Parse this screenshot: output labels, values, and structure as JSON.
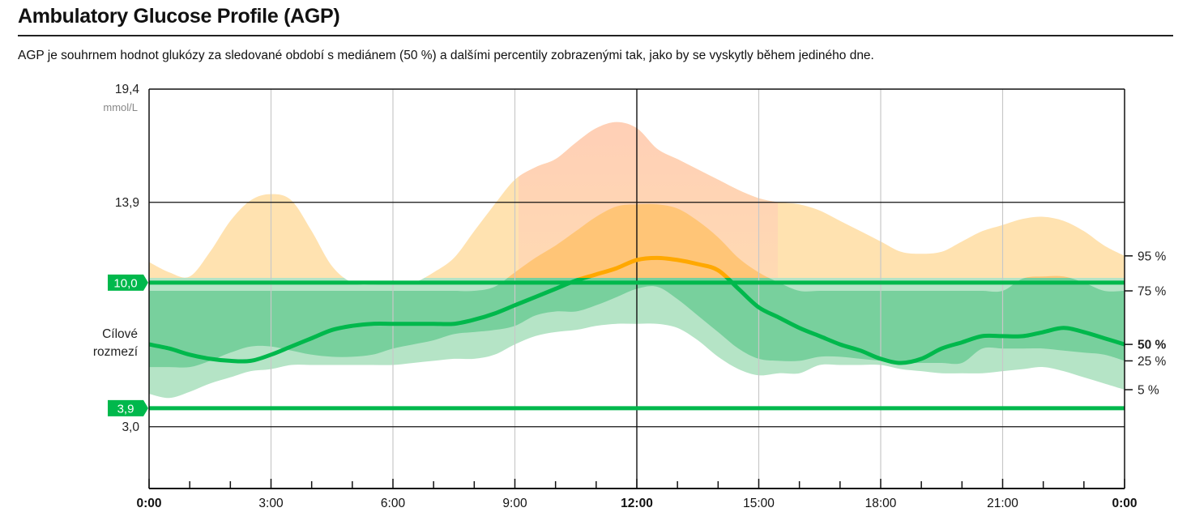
{
  "header": {
    "title": "Ambulatory Glucose Profile (AGP)",
    "description": "AGP je souhrnem hodnot glukózy za sledované období s mediánem (50 %) a dalšími percentily zobrazenými tak, jako by se vyskytly během jediného dne."
  },
  "chart_data": {
    "type": "area",
    "title": "Ambulatory Glucose Profile (AGP)",
    "unit": "mmol/L",
    "x_ticks": [
      "0:00",
      "3:00",
      "6:00",
      "9:00",
      "12:00",
      "15:00",
      "18:00",
      "21:00",
      "0:00"
    ],
    "x_hours": [
      0,
      0.5,
      1,
      1.5,
      2,
      2.5,
      3,
      3.5,
      4,
      4.5,
      5,
      5.5,
      6,
      6.5,
      7,
      7.5,
      8,
      8.5,
      9,
      9.5,
      10,
      10.5,
      11,
      11.5,
      12,
      12.5,
      13,
      13.5,
      14,
      14.5,
      15,
      15.5,
      16,
      16.5,
      17,
      17.5,
      18,
      18.5,
      19,
      19.5,
      20,
      20.5,
      21,
      21.5,
      22,
      22.5,
      23,
      23.5,
      24
    ],
    "y_ticks": [
      "19,4",
      "13,9",
      "3,0"
    ],
    "ylim": [
      0,
      19.4
    ],
    "target_range": {
      "low": 3.9,
      "high": 10.0,
      "low_label": "3,9",
      "high_label": "10,0",
      "label_line1": "Cílové",
      "label_line2": "rozmezí"
    },
    "series": [
      {
        "name": "95 %",
        "values": [
          11.0,
          10.5,
          10.3,
          11.5,
          13.0,
          14.0,
          14.3,
          14.0,
          12.5,
          10.8,
          10.0,
          9.9,
          10.0,
          10.0,
          10.5,
          11.2,
          12.5,
          13.8,
          15.0,
          15.6,
          16.0,
          16.8,
          17.5,
          17.8,
          17.5,
          16.5,
          16.0,
          15.5,
          15.0,
          14.5,
          14.1,
          13.9,
          13.8,
          13.5,
          13.0,
          12.5,
          12.0,
          11.5,
          11.4,
          11.5,
          12.0,
          12.5,
          12.8,
          13.1,
          13.2,
          13.0,
          12.5,
          11.8,
          11.3
        ]
      },
      {
        "name": "75 %",
        "values": [
          9.6,
          9.6,
          9.6,
          9.6,
          9.6,
          9.6,
          9.6,
          9.6,
          9.6,
          9.6,
          9.6,
          9.6,
          9.6,
          9.6,
          9.6,
          9.6,
          9.6,
          9.8,
          10.5,
          11.2,
          11.8,
          12.5,
          13.2,
          13.7,
          13.8,
          13.8,
          13.6,
          13.0,
          12.2,
          11.2,
          10.5,
          10.0,
          9.6,
          9.6,
          9.6,
          9.6,
          9.6,
          9.6,
          9.6,
          9.6,
          9.6,
          9.6,
          9.6,
          10.2,
          10.3,
          10.3,
          10.0,
          9.6,
          9.6
        ]
      },
      {
        "name": "50 %",
        "values": [
          7.0,
          6.8,
          6.5,
          6.3,
          6.2,
          6.2,
          6.5,
          6.9,
          7.3,
          7.7,
          7.9,
          8.0,
          8.0,
          8.0,
          8.0,
          8.0,
          8.2,
          8.5,
          8.9,
          9.3,
          9.7,
          10.1,
          10.4,
          10.7,
          11.1,
          11.2,
          11.1,
          10.9,
          10.6,
          9.7,
          8.8,
          8.3,
          7.8,
          7.4,
          7.0,
          6.7,
          6.3,
          6.1,
          6.3,
          6.8,
          7.1,
          7.4,
          7.4,
          7.4,
          7.6,
          7.8,
          7.6,
          7.3,
          7.0
        ]
      },
      {
        "name": "25 %",
        "values": [
          5.9,
          5.9,
          5.9,
          6.2,
          6.6,
          6.9,
          6.9,
          6.7,
          6.5,
          6.4,
          6.4,
          6.5,
          6.8,
          7.0,
          7.2,
          7.5,
          7.6,
          7.7,
          7.9,
          8.4,
          8.6,
          8.6,
          8.9,
          9.3,
          9.7,
          9.8,
          9.2,
          8.4,
          7.6,
          6.8,
          6.3,
          6.2,
          6.2,
          6.4,
          6.4,
          6.3,
          6.2,
          6.1,
          6.1,
          6.1,
          6.1,
          6.8,
          6.8,
          6.8,
          6.8,
          6.7,
          6.6,
          6.5,
          6.2
        ]
      },
      {
        "name": "5 %",
        "values": [
          4.6,
          4.4,
          4.7,
          5.1,
          5.4,
          5.7,
          5.8,
          6.0,
          6.0,
          6.0,
          6.0,
          6.0,
          6.0,
          6.1,
          6.2,
          6.3,
          6.3,
          6.5,
          7.0,
          7.4,
          7.6,
          7.7,
          7.9,
          8.0,
          8.0,
          8.0,
          7.8,
          7.2,
          6.4,
          5.8,
          5.5,
          5.6,
          5.6,
          6.0,
          6.0,
          6.0,
          6.0,
          5.8,
          5.7,
          5.6,
          5.6,
          5.6,
          5.7,
          5.8,
          5.9,
          5.7,
          5.4,
          5.1,
          4.8
        ]
      }
    ],
    "colors": {
      "above_outer": "#ffe2b0",
      "above_outer_peak": "#ffd4b8",
      "above_inner": "#ffc577",
      "in_outer": "#b5e4c6",
      "in_inner": "#78d09d",
      "median_in": "#00b84c",
      "median_above": "#ffa800",
      "target_line": "#00b84c",
      "grid_major": "#111111",
      "grid_minor": "#c8c8c8",
      "label_bg": "#00b84c"
    }
  }
}
